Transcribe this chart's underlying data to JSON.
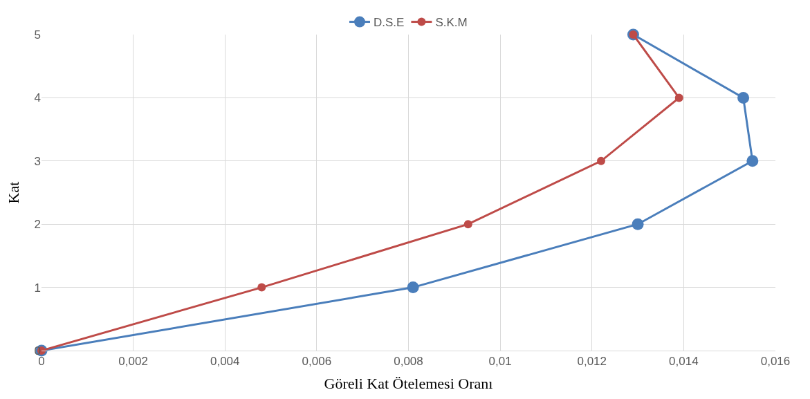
{
  "chart_data": {
    "type": "line",
    "xlabel": "Göreli Kat Ötelemesi Oranı",
    "ylabel": "Kat",
    "series": [
      {
        "name": "D.S.E",
        "color": "#4a7ebb",
        "x": [
          0,
          0.0081,
          0.013,
          0.0155,
          0.0153,
          0.0129
        ],
        "values": [
          0,
          1,
          2,
          3,
          4,
          5
        ]
      },
      {
        "name": "S.K.M",
        "color": "#be4b48",
        "x": [
          0,
          0.0048,
          0.0093,
          0.0122,
          0.0139,
          0.0129
        ],
        "values": [
          0,
          1,
          2,
          3,
          4,
          5
        ]
      }
    ],
    "xlim": [
      0,
      0.016
    ],
    "xticks": [
      0,
      {
        "value": 0.002,
        "label": "0,002"
      },
      {
        "value": 0.004,
        "label": "0,004"
      },
      {
        "value": 0.006,
        "label": "0,006"
      },
      {
        "value": 0.008,
        "label": "0,008"
      },
      {
        "value": 0.01,
        "label": "0,01"
      },
      {
        "value": 0.012,
        "label": "0,012"
      },
      {
        "value": 0.014,
        "label": "0,014"
      },
      {
        "value": 0.016,
        "label": "0,016"
      }
    ],
    "ylim": [
      0,
      5
    ],
    "yticks": [
      0,
      1,
      2,
      3,
      4,
      5
    ],
    "grid": true,
    "legend": "top",
    "marker": "circle",
    "line_style": "solid"
  }
}
